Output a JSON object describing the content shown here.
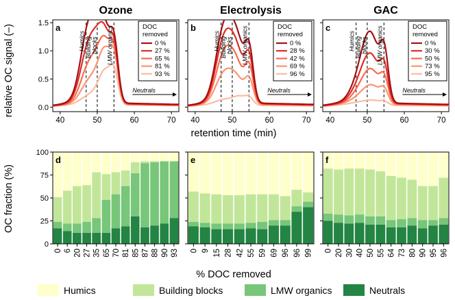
{
  "figure": {
    "top_ylabel": "relative OC signal (–)",
    "top_xlabel": "retention time (min)",
    "bottom_ylabel": "OC fraction (%)",
    "bottom_xlabel": "% DOC removed",
    "legend": [
      {
        "label": "Humics",
        "color": "#ffffcc"
      },
      {
        "label": "Building blocks",
        "color": "#c2e699"
      },
      {
        "label": "LMW organics",
        "color": "#78c679"
      },
      {
        "label": "Neutrals",
        "color": "#238443"
      }
    ]
  },
  "chart_data": [
    {
      "type": "line",
      "panel": "a",
      "title": "Ozone",
      "xlim": [
        38,
        72
      ],
      "ylim": [
        -0.08,
        1.55
      ],
      "xticks": [
        40,
        50,
        60,
        70
      ],
      "yticks": [
        0.0,
        0.5,
        1.0,
        1.5
      ],
      "legend_title": [
        "DOC",
        "removed"
      ],
      "annotations": {
        "humics": "Humics",
        "bb1": "Building",
        "bb2": "blocks",
        "lmw": "LMW organics",
        "neutrals": "Neutrals"
      },
      "vlines": [
        47,
        50,
        54.5
      ],
      "series": [
        {
          "name": "0 %",
          "color": "#a50f15",
          "params": [
            1.03,
            0.9,
            0.88,
            0.9,
            0.09,
            0.06
          ]
        },
        {
          "name": "27 %",
          "color": "#de2d26",
          "params": [
            0.78,
            0.72,
            0.88,
            0.82,
            0.08,
            0.05
          ]
        },
        {
          "name": "65 %",
          "color": "#fb6a4a",
          "params": [
            0.5,
            0.5,
            0.84,
            0.76,
            0.07,
            0.04
          ]
        },
        {
          "name": "81 %",
          "color": "#fc9272",
          "params": [
            0.28,
            0.32,
            0.78,
            0.7,
            0.06,
            0.04
          ]
        },
        {
          "name": "93 %",
          "color": "#fcbba1",
          "params": [
            0.1,
            0.14,
            0.52,
            0.5,
            0.05,
            0.03
          ]
        }
      ]
    },
    {
      "type": "line",
      "panel": "b",
      "title": "Electrolysis",
      "xlim": [
        38,
        72
      ],
      "ylim": [
        -0.08,
        1.55
      ],
      "xticks": [
        40,
        50,
        60,
        70
      ],
      "yticks": [
        0.0,
        0.5,
        1.0,
        1.5
      ],
      "legend_title": [
        "DOC",
        "removed"
      ],
      "annotations": {
        "humics": "Humics",
        "bb1": "Building",
        "bb2": "blocks",
        "lmw": "LMW organics",
        "neutrals": "Neutrals"
      },
      "vlines": [
        47,
        50,
        54.5
      ],
      "series": [
        {
          "name": "0 %",
          "color": "#a50f15",
          "params": [
            1.0,
            0.88,
            0.55,
            0.86,
            0.09,
            0.06
          ]
        },
        {
          "name": "28 %",
          "color": "#de2d26",
          "params": [
            0.85,
            0.76,
            0.42,
            0.74,
            0.08,
            0.05
          ]
        },
        {
          "name": "42 %",
          "color": "#fb6a4a",
          "params": [
            0.66,
            0.6,
            0.3,
            0.6,
            0.07,
            0.04
          ]
        },
        {
          "name": "69 %",
          "color": "#fc9272",
          "params": [
            0.4,
            0.36,
            0.22,
            0.4,
            0.06,
            0.04
          ]
        },
        {
          "name": "96 %",
          "color": "#fcbba1",
          "params": [
            0.06,
            0.06,
            0.12,
            0.12,
            0.04,
            0.03
          ]
        }
      ]
    },
    {
      "type": "line",
      "panel": "c",
      "title": "GAC",
      "xlim": [
        38,
        72
      ],
      "ylim": [
        -0.08,
        1.55
      ],
      "xticks": [
        40,
        50,
        60,
        70
      ],
      "yticks": [
        0.0,
        0.5,
        1.0,
        1.5
      ],
      "legend_title": [
        "DOC",
        "removed"
      ],
      "annotations": {
        "humics": "Humics",
        "bb1": "Building",
        "bb2": "blocks",
        "lmw": "LMW organics",
        "neutrals": "Neutrals"
      },
      "vlines": [
        47,
        50,
        54.5
      ],
      "series": [
        {
          "name": "0 %",
          "color": "#a50f15",
          "params": [
            0.25,
            0.9,
            0.55,
            0.85,
            0.09,
            0.06
          ]
        },
        {
          "name": "30 %",
          "color": "#de2d26",
          "params": [
            0.18,
            0.62,
            0.4,
            0.6,
            0.08,
            0.05
          ]
        },
        {
          "name": "50 %",
          "color": "#fb6a4a",
          "params": [
            0.12,
            0.42,
            0.3,
            0.42,
            0.07,
            0.04
          ]
        },
        {
          "name": "73 %",
          "color": "#fc9272",
          "params": [
            0.06,
            0.22,
            0.18,
            0.24,
            0.06,
            0.04
          ]
        },
        {
          "name": "95 %",
          "color": "#fcbba1",
          "params": [
            0.02,
            0.05,
            0.05,
            0.06,
            0.04,
            0.03
          ]
        }
      ]
    },
    {
      "type": "bar",
      "stacked": true,
      "panel": "d",
      "categories": [
        "0",
        "6",
        "20",
        "27",
        "35",
        "65",
        "70",
        "81",
        "85",
        "87",
        "88",
        "90",
        "93"
      ],
      "ylim": [
        0,
        100
      ],
      "yticks": [
        0,
        25,
        50,
        75,
        100
      ],
      "series": [
        {
          "name": "Neutrals",
          "values": [
            17,
            14,
            12,
            12,
            12,
            12,
            17,
            19,
            30,
            18,
            20,
            22,
            28
          ]
        },
        {
          "name": "LMW organics",
          "values": [
            7,
            8,
            10,
            12,
            16,
            36,
            37,
            44,
            47,
            70,
            69,
            68,
            62
          ]
        },
        {
          "name": "Building blocks",
          "values": [
            27,
            36,
            41,
            40,
            50,
            28,
            24,
            17,
            12,
            2,
            1,
            0,
            0
          ]
        },
        {
          "name": "Humics",
          "values": [
            49,
            42,
            37,
            36,
            22,
            24,
            22,
            20,
            11,
            10,
            10,
            10,
            10
          ]
        }
      ]
    },
    {
      "type": "bar",
      "stacked": true,
      "panel": "e",
      "categories": [
        "0",
        "9",
        "15",
        "28",
        "42",
        "55",
        "59",
        "69",
        "96",
        "96",
        "99"
      ],
      "ylim": [
        0,
        100
      ],
      "yticks": [
        0,
        25,
        50,
        75,
        100
      ],
      "series": [
        {
          "name": "Neutrals",
          "values": [
            19,
            18,
            16,
            16,
            16,
            17,
            16,
            20,
            20,
            35,
            40
          ]
        },
        {
          "name": "LMW organics",
          "values": [
            5,
            5,
            6,
            6,
            6,
            6,
            8,
            6,
            6,
            6,
            6
          ]
        },
        {
          "name": "Building blocks",
          "values": [
            33,
            32,
            32,
            31,
            31,
            31,
            30,
            28,
            26,
            18,
            10
          ]
        },
        {
          "name": "Humics",
          "values": [
            43,
            45,
            46,
            47,
            47,
            46,
            46,
            46,
            48,
            41,
            44
          ]
        }
      ]
    },
    {
      "type": "bar",
      "stacked": true,
      "panel": "f",
      "categories": [
        "0",
        "20",
        "30",
        "40",
        "50",
        "55",
        "64",
        "73",
        "80",
        "90",
        "95",
        "96"
      ],
      "ylim": [
        0,
        100
      ],
      "yticks": [
        0,
        25,
        50,
        75,
        100
      ],
      "series": [
        {
          "name": "Neutrals",
          "values": [
            25,
            23,
            22,
            23,
            21,
            21,
            18,
            18,
            20,
            17,
            20,
            21
          ]
        },
        {
          "name": "LMW organics",
          "values": [
            8,
            9,
            9,
            9,
            9,
            9,
            8,
            9,
            8,
            9,
            6,
            7
          ]
        },
        {
          "name": "Building blocks",
          "values": [
            49,
            49,
            51,
            50,
            51,
            49,
            48,
            45,
            42,
            37,
            37,
            44
          ]
        },
        {
          "name": "Humics",
          "values": [
            18,
            19,
            18,
            18,
            19,
            21,
            26,
            28,
            30,
            37,
            37,
            28
          ]
        }
      ]
    }
  ]
}
